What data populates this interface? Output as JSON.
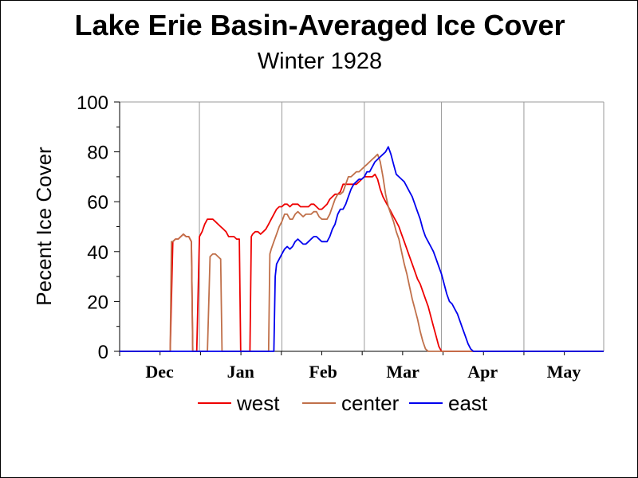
{
  "chart_data": {
    "type": "line",
    "title": "Lake Erie Basin-Averaged Ice Cover",
    "subtitle": "Winter 1928",
    "ylabel": "Pecent Ice Cover",
    "xlabel": "",
    "ylim": [
      0,
      100
    ],
    "yticks": [
      0,
      20,
      40,
      60,
      80,
      100
    ],
    "xlim": [
      0,
      182
    ],
    "month_labels": [
      "Dec",
      "Jan",
      "Feb",
      "Mar",
      "Apr",
      "May"
    ],
    "month_boundaries": [
      0,
      30,
      61,
      92,
      121,
      152,
      182
    ],
    "legend_position": "bottom",
    "grid": "vertical month lines",
    "series": [
      {
        "name": "west",
        "color": "#ee0000",
        "points": [
          [
            0,
            0
          ],
          [
            19,
            0
          ],
          [
            20,
            44
          ],
          [
            21,
            45
          ],
          [
            22,
            45
          ],
          [
            23,
            46
          ],
          [
            24,
            47
          ],
          [
            25,
            46
          ],
          [
            26,
            46
          ],
          [
            27,
            44
          ],
          [
            27.5,
            0
          ],
          [
            29,
            0
          ],
          [
            30,
            46
          ],
          [
            31,
            48
          ],
          [
            32,
            51
          ],
          [
            33,
            53
          ],
          [
            34,
            53
          ],
          [
            35,
            53
          ],
          [
            36,
            52
          ],
          [
            37,
            51
          ],
          [
            38,
            50
          ],
          [
            39,
            49
          ],
          [
            40,
            48
          ],
          [
            41,
            46
          ],
          [
            42,
            46
          ],
          [
            43,
            46
          ],
          [
            44,
            45
          ],
          [
            45,
            45
          ],
          [
            45.5,
            0
          ],
          [
            49,
            0
          ],
          [
            49.5,
            46
          ],
          [
            50,
            47
          ],
          [
            51,
            48
          ],
          [
            52,
            48
          ],
          [
            53,
            47
          ],
          [
            54,
            48
          ],
          [
            55,
            49
          ],
          [
            56,
            51
          ],
          [
            57,
            53
          ],
          [
            58,
            55
          ],
          [
            59,
            57
          ],
          [
            60,
            58
          ],
          [
            61,
            58
          ],
          [
            62,
            59
          ],
          [
            63,
            59
          ],
          [
            64,
            58
          ],
          [
            65,
            59
          ],
          [
            66,
            59
          ],
          [
            67,
            59
          ],
          [
            68,
            58
          ],
          [
            69,
            58
          ],
          [
            70,
            58
          ],
          [
            71,
            58
          ],
          [
            72,
            59
          ],
          [
            73,
            59
          ],
          [
            74,
            58
          ],
          [
            75,
            57
          ],
          [
            76,
            57
          ],
          [
            77,
            58
          ],
          [
            78,
            59
          ],
          [
            79,
            61
          ],
          [
            80,
            62
          ],
          [
            81,
            63
          ],
          [
            82,
            63
          ],
          [
            83,
            64
          ],
          [
            84,
            67
          ],
          [
            85,
            67
          ],
          [
            86,
            67
          ],
          [
            87,
            67
          ],
          [
            88,
            67
          ],
          [
            89,
            67
          ],
          [
            90,
            68
          ],
          [
            91,
            69
          ],
          [
            92,
            70
          ],
          [
            93,
            70
          ],
          [
            94,
            70
          ],
          [
            95,
            70
          ],
          [
            96,
            71
          ],
          [
            97,
            69
          ],
          [
            98,
            65
          ],
          [
            99,
            62
          ],
          [
            100,
            60
          ],
          [
            101,
            58
          ],
          [
            102,
            56
          ],
          [
            103,
            54
          ],
          [
            104,
            52
          ],
          [
            105,
            50
          ],
          [
            106,
            47
          ],
          [
            107,
            44
          ],
          [
            108,
            41
          ],
          [
            109,
            38
          ],
          [
            110,
            35
          ],
          [
            111,
            32
          ],
          [
            112,
            29
          ],
          [
            113,
            27
          ],
          [
            114,
            24
          ],
          [
            115,
            21
          ],
          [
            116,
            18
          ],
          [
            117,
            14
          ],
          [
            118,
            10
          ],
          [
            119,
            6
          ],
          [
            120,
            2
          ],
          [
            121,
            0
          ],
          [
            182,
            0
          ]
        ]
      },
      {
        "name": "center",
        "color": "#c0704a",
        "points": [
          [
            0,
            0
          ],
          [
            19,
            0
          ],
          [
            19.5,
            44
          ],
          [
            20,
            44
          ],
          [
            21,
            45
          ],
          [
            22,
            45
          ],
          [
            23,
            46
          ],
          [
            24,
            47
          ],
          [
            25,
            46
          ],
          [
            26,
            46
          ],
          [
            27,
            44
          ],
          [
            27.5,
            0
          ],
          [
            33,
            0
          ],
          [
            34,
            38
          ],
          [
            35,
            39
          ],
          [
            36,
            39
          ],
          [
            37,
            38
          ],
          [
            38,
            37
          ],
          [
            38.5,
            0
          ],
          [
            56,
            0
          ],
          [
            56.5,
            39
          ],
          [
            57,
            41
          ],
          [
            58,
            44
          ],
          [
            59,
            47
          ],
          [
            60,
            50
          ],
          [
            61,
            52
          ],
          [
            62,
            55
          ],
          [
            63,
            55
          ],
          [
            64,
            53
          ],
          [
            65,
            53
          ],
          [
            66,
            55
          ],
          [
            67,
            56
          ],
          [
            68,
            55
          ],
          [
            69,
            54
          ],
          [
            70,
            55
          ],
          [
            71,
            55
          ],
          [
            72,
            55
          ],
          [
            73,
            56
          ],
          [
            74,
            56
          ],
          [
            75,
            54
          ],
          [
            76,
            53
          ],
          [
            77,
            53
          ],
          [
            78,
            53
          ],
          [
            79,
            55
          ],
          [
            80,
            58
          ],
          [
            81,
            61
          ],
          [
            82,
            63
          ],
          [
            83,
            63
          ],
          [
            84,
            64
          ],
          [
            85,
            67
          ],
          [
            86,
            70
          ],
          [
            87,
            70
          ],
          [
            88,
            71
          ],
          [
            89,
            72
          ],
          [
            90,
            72
          ],
          [
            91,
            73
          ],
          [
            92,
            74
          ],
          [
            93,
            75
          ],
          [
            94,
            76
          ],
          [
            95,
            77
          ],
          [
            96,
            78
          ],
          [
            97,
            79
          ],
          [
            98,
            76
          ],
          [
            99,
            70
          ],
          [
            100,
            63
          ],
          [
            101,
            58
          ],
          [
            102,
            55
          ],
          [
            103,
            52
          ],
          [
            104,
            48
          ],
          [
            105,
            45
          ],
          [
            106,
            40
          ],
          [
            107,
            35
          ],
          [
            108,
            31
          ],
          [
            109,
            26
          ],
          [
            110,
            21
          ],
          [
            111,
            17
          ],
          [
            112,
            13
          ],
          [
            113,
            8
          ],
          [
            114,
            4
          ],
          [
            115,
            1
          ],
          [
            116,
            0
          ],
          [
            182,
            0
          ]
        ]
      },
      {
        "name": "east",
        "color": "#0000ee",
        "points": [
          [
            0,
            0
          ],
          [
            58,
            0
          ],
          [
            58.5,
            30
          ],
          [
            59,
            35
          ],
          [
            60,
            37
          ],
          [
            61,
            39
          ],
          [
            62,
            41
          ],
          [
            63,
            42
          ],
          [
            64,
            41
          ],
          [
            65,
            42
          ],
          [
            66,
            44
          ],
          [
            67,
            45
          ],
          [
            68,
            44
          ],
          [
            69,
            43
          ],
          [
            70,
            43
          ],
          [
            71,
            44
          ],
          [
            72,
            45
          ],
          [
            73,
            46
          ],
          [
            74,
            46
          ],
          [
            75,
            45
          ],
          [
            76,
            44
          ],
          [
            77,
            44
          ],
          [
            78,
            44
          ],
          [
            79,
            46
          ],
          [
            80,
            49
          ],
          [
            81,
            51
          ],
          [
            82,
            55
          ],
          [
            83,
            57
          ],
          [
            84,
            57
          ],
          [
            85,
            59
          ],
          [
            86,
            62
          ],
          [
            87,
            65
          ],
          [
            88,
            67
          ],
          [
            89,
            68
          ],
          [
            90,
            69
          ],
          [
            91,
            69
          ],
          [
            92,
            70
          ],
          [
            93,
            72
          ],
          [
            94,
            72
          ],
          [
            95,
            74
          ],
          [
            96,
            76
          ],
          [
            97,
            77
          ],
          [
            98,
            78
          ],
          [
            99,
            79
          ],
          [
            100,
            80
          ],
          [
            101,
            82
          ],
          [
            102,
            79
          ],
          [
            103,
            75
          ],
          [
            104,
            71
          ],
          [
            105,
            70
          ],
          [
            106,
            69
          ],
          [
            107,
            68
          ],
          [
            108,
            66
          ],
          [
            109,
            64
          ],
          [
            110,
            62
          ],
          [
            111,
            59
          ],
          [
            112,
            56
          ],
          [
            113,
            53
          ],
          [
            114,
            49
          ],
          [
            115,
            46
          ],
          [
            116,
            44
          ],
          [
            117,
            42
          ],
          [
            118,
            40
          ],
          [
            119,
            37
          ],
          [
            120,
            34
          ],
          [
            121,
            31
          ],
          [
            122,
            27
          ],
          [
            123,
            23
          ],
          [
            124,
            20
          ],
          [
            125,
            19
          ],
          [
            126,
            17
          ],
          [
            127,
            15
          ],
          [
            128,
            12
          ],
          [
            129,
            9
          ],
          [
            130,
            6
          ],
          [
            131,
            3
          ],
          [
            132,
            1
          ],
          [
            133,
            0
          ],
          [
            182,
            0
          ]
        ]
      }
    ]
  }
}
